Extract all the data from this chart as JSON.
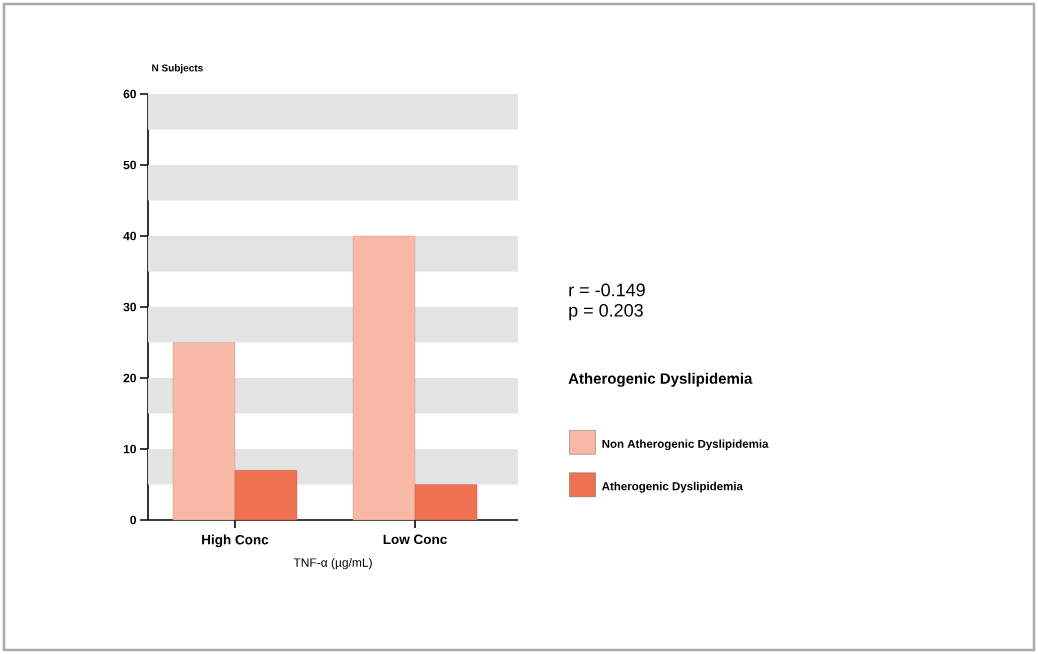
{
  "chart_data": {
    "type": "bar",
    "categories": [
      "High Conc",
      "Low Conc"
    ],
    "xlabel": "TNF-α (µg/mL)",
    "ylabel": "N Subjects",
    "legend_title": "Atherogenic Dyslipidemia",
    "series": [
      {
        "name": "Non Atherogenic Dyslipidemia",
        "color": "#f7b9a6",
        "values": [
          25,
          40
        ]
      },
      {
        "name": "Atherogenic Dyslipidemia",
        "color": "#ee7152",
        "values": [
          7,
          5
        ]
      }
    ],
    "ylim": [
      0,
      60
    ],
    "yticks": [
      0,
      10,
      20,
      30,
      40,
      50,
      60
    ],
    "bands": [
      {
        "axis": "y",
        "from": 5,
        "to": 10,
        "color": "#e3e3e3"
      },
      {
        "axis": "y",
        "from": 15,
        "to": 20,
        "color": "#e3e3e3"
      },
      {
        "axis": "y",
        "from": 25,
        "to": 30,
        "color": "#e3e3e3"
      },
      {
        "axis": "y",
        "from": 35,
        "to": 40,
        "color": "#e3e3e3"
      },
      {
        "axis": "y",
        "from": 45,
        "to": 50,
        "color": "#e3e3e3"
      },
      {
        "axis": "y",
        "from": 55,
        "to": 60,
        "color": "#e3e3e3"
      }
    ],
    "legend": "right",
    "annotations": [
      "r = -0.149",
      "p = 0.203"
    ]
  }
}
